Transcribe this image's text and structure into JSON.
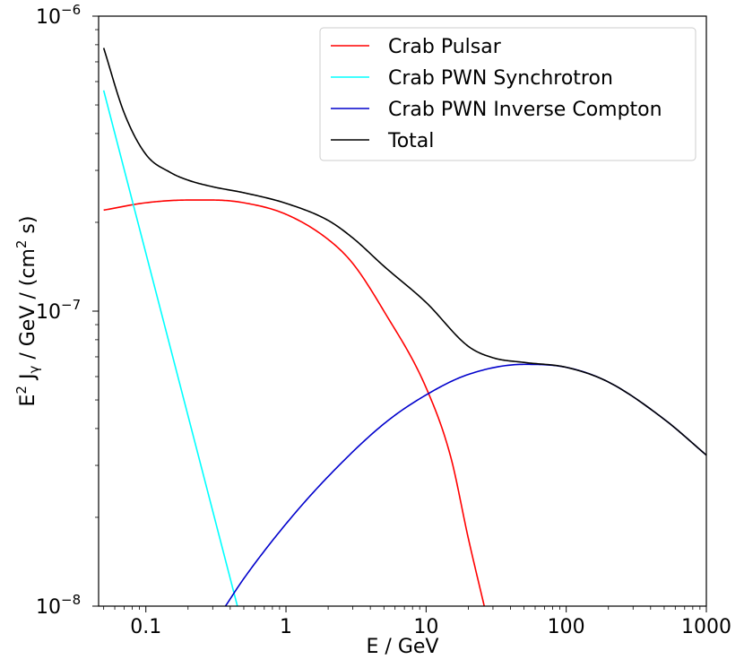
{
  "chart_data": {
    "type": "line",
    "xscale": "log",
    "yscale": "log",
    "xlim": [
      0.046,
      1000
    ],
    "ylim": [
      1e-08,
      1e-06
    ],
    "xlabel": "E / GeV",
    "ylabel": {
      "base": "E",
      "base_sup": "2",
      "mid": " J",
      "mid_sub": "γ",
      "rest": " / GeV / (cm",
      "rest_sup": "2",
      "tail": " s)"
    },
    "xticks": [
      {
        "value": 0.1,
        "label": "0.1"
      },
      {
        "value": 1,
        "label": "1"
      },
      {
        "value": 10,
        "label": "10"
      },
      {
        "value": 100,
        "label": "100"
      },
      {
        "value": 1000,
        "label": "1000"
      }
    ],
    "yticks": [
      {
        "value": 1e-06,
        "base": "10",
        "exp": "−6"
      },
      {
        "value": 1e-07,
        "base": "10",
        "exp": "−7"
      },
      {
        "value": 1e-08,
        "base": "10",
        "exp": "−8"
      }
    ],
    "legend_position": "top-right",
    "grid": false,
    "series": [
      {
        "name": "Crab Pulsar",
        "color": "#ff0000",
        "x": [
          0.05,
          0.1,
          0.2,
          0.3,
          0.5,
          1,
          2,
          3,
          5,
          10,
          15,
          20,
          26
        ],
        "y": [
          2.2e-07,
          2.33e-07,
          2.38e-07,
          2.38e-07,
          2.33e-07,
          2.13e-07,
          1.75e-07,
          1.45e-07,
          1e-07,
          5.5e-08,
          3.2e-08,
          1.7e-08,
          1e-08
        ]
      },
      {
        "name": "Crab PWN Synchrotron",
        "color": "#00ffff",
        "x": [
          0.05,
          0.45
        ],
        "y": [
          5.6e-07,
          1e-08
        ]
      },
      {
        "name": "Crab PWN Inverse Compton",
        "color": "#0000cc",
        "x": [
          0.37,
          0.5,
          1,
          2,
          5,
          10,
          20,
          50,
          100,
          200,
          500,
          1000
        ],
        "y": [
          1e-08,
          1.24e-08,
          1.9e-08,
          2.75e-08,
          4.15e-08,
          5.2e-08,
          6.1e-08,
          6.6e-08,
          6.45e-08,
          5.75e-08,
          4.3e-08,
          3.25e-08
        ]
      },
      {
        "name": "Total",
        "color": "#000000",
        "x": [
          0.05,
          0.07,
          0.1,
          0.15,
          0.2,
          0.3,
          0.5,
          1,
          2,
          3,
          5,
          10,
          20,
          30,
          50,
          100,
          200,
          500,
          1000
        ],
        "y": [
          7.8e-07,
          4.7e-07,
          3.4e-07,
          2.95e-07,
          2.78e-07,
          2.64e-07,
          2.52e-07,
          2.32e-07,
          2.03e-07,
          1.77e-07,
          1.42e-07,
          1.07e-07,
          7.6e-08,
          6.95e-08,
          6.7e-08,
          6.45e-08,
          5.75e-08,
          4.3e-08,
          3.25e-08
        ]
      }
    ]
  }
}
